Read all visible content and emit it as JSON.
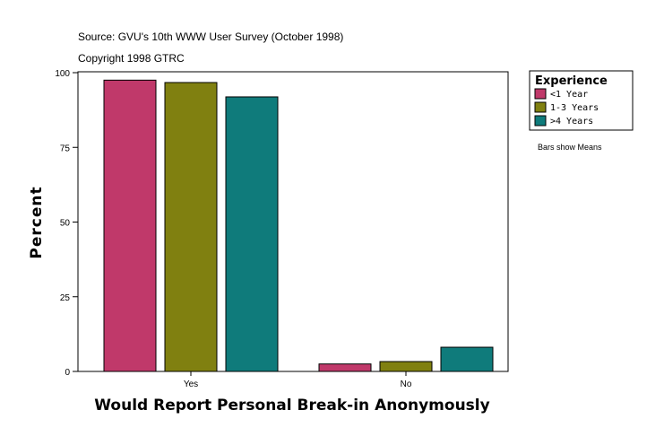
{
  "chart_data": {
    "type": "bar",
    "source_line": "Source: GVU's 10th WWW User Survey (October 1998)",
    "copyright_line": "Copyright 1998 GTRC",
    "categories": [
      "Yes",
      "No"
    ],
    "series": [
      {
        "name": "<1 Year",
        "color": "#c0396a",
        "values": [
          97.5,
          2.5
        ]
      },
      {
        "name": "1-3 Years",
        "color": "#808010",
        "values": [
          96.7,
          3.3
        ]
      },
      {
        "name": ">4 Years",
        "color": "#0f7b7b",
        "values": [
          91.9,
          8.1
        ]
      }
    ],
    "xlabel": "Would Report Personal Break-in Anonymously",
    "ylabel": "Percent",
    "ylim": [
      0,
      100
    ],
    "yticks": [
      0,
      25,
      50,
      75,
      100
    ],
    "legend_title": "Experience",
    "legend_position": "top-right",
    "note": "Bars show Means",
    "grid": false
  }
}
